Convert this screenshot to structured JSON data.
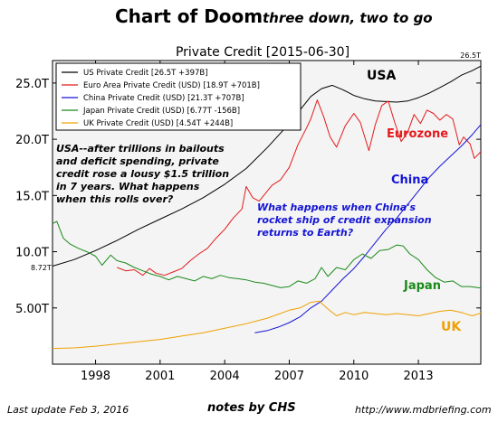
{
  "header": {
    "title": "Chart of Doom",
    "subtitle": "three down, two to go"
  },
  "footer": {
    "last_update": "Last update Feb  3, 2016",
    "notes": "notes by CHS",
    "url": "http://www.mdbriefing.com"
  },
  "colors": {
    "usa": "#000000",
    "euro": "#e41a1c",
    "china": "#1414d4",
    "japan": "#1a8a1a",
    "uk": "#f0a000",
    "plot_bg": "#f4f4f4"
  },
  "chart_data": {
    "type": "line",
    "title": "Private Credit  [2015-06-30]",
    "xlabel": "",
    "ylabel": "",
    "xlim": [
      1996.0,
      2015.9
    ],
    "ylim": [
      0,
      27
    ],
    "x_ticks": [
      1998,
      2001,
      2004,
      2007,
      2010,
      2013
    ],
    "x_tick_labels": [
      "1998",
      "2001",
      "2004",
      "2007",
      "2010",
      "2013"
    ],
    "y_ticks": [
      5,
      10,
      15,
      20,
      25
    ],
    "y_tick_labels": [
      "5.00T",
      "10.0T",
      "15.0T",
      "20.0T",
      "25.0T"
    ],
    "grid": false,
    "legend_position": "top-left",
    "edge_labels": {
      "right_top": "26.5T",
      "left": "8.72T"
    },
    "series": [
      {
        "name": "US Private Credit [26.5T +397B]",
        "key": "usa",
        "x": [
          1996.0,
          1997.0,
          1998.0,
          1999.0,
          2000.0,
          2001.0,
          2002.0,
          2003.0,
          2004.0,
          2005.0,
          2006.0,
          2007.0,
          2007.5,
          2008.0,
          2008.5,
          2009.0,
          2009.5,
          2010.0,
          2010.5,
          2011.0,
          2012.0,
          2012.5,
          2013.0,
          2013.5,
          2014.0,
          2014.5,
          2015.0,
          2015.5,
          2015.9
        ],
        "values": [
          8.72,
          9.3,
          10.1,
          11.0,
          12.0,
          12.9,
          13.8,
          14.8,
          16.0,
          17.4,
          19.3,
          21.4,
          22.6,
          23.8,
          24.5,
          24.8,
          24.4,
          23.9,
          23.6,
          23.4,
          23.3,
          23.4,
          23.7,
          24.1,
          24.6,
          25.1,
          25.7,
          26.1,
          26.5
        ]
      },
      {
        "name": "Euro Area Private Credit (USD) [18.9T +701B]",
        "key": "euro",
        "x": [
          1999.0,
          1999.4,
          1999.8,
          2000.2,
          2000.5,
          2000.8,
          2001.2,
          2001.6,
          2002.0,
          2002.4,
          2002.8,
          2003.2,
          2003.6,
          2004.0,
          2004.4,
          2004.8,
          2005.0,
          2005.3,
          2005.6,
          2005.9,
          2006.2,
          2006.6,
          2007.0,
          2007.4,
          2007.8,
          2008.0,
          2008.3,
          2008.6,
          2008.9,
          2009.2,
          2009.6,
          2010.0,
          2010.3,
          2010.7,
          2011.0,
          2011.3,
          2011.6,
          2011.9,
          2012.2,
          2012.5,
          2012.8,
          2013.1,
          2013.4,
          2013.7,
          2014.0,
          2014.3,
          2014.6,
          2014.9,
          2015.1,
          2015.4,
          2015.6,
          2015.9
        ],
        "values": [
          8.6,
          8.3,
          8.4,
          7.9,
          8.5,
          8.1,
          7.9,
          8.2,
          8.5,
          9.2,
          9.8,
          10.3,
          11.2,
          12.0,
          13.0,
          13.8,
          15.8,
          14.8,
          14.5,
          15.2,
          15.9,
          16.4,
          17.5,
          19.5,
          21.0,
          21.8,
          23.5,
          22.0,
          20.2,
          19.3,
          21.2,
          22.3,
          21.5,
          19.0,
          21.3,
          23.0,
          23.4,
          21.5,
          19.8,
          20.6,
          22.2,
          21.4,
          22.6,
          22.3,
          21.7,
          22.2,
          21.8,
          19.5,
          20.2,
          19.6,
          18.3,
          18.9
        ]
      },
      {
        "name": "China Private Credit (USD) [21.3T +707B]",
        "key": "china",
        "x": [
          2005.4,
          2006.0,
          2006.5,
          2007.0,
          2007.5,
          2008.0,
          2008.5,
          2009.0,
          2009.5,
          2010.0,
          2010.5,
          2011.0,
          2011.5,
          2012.0,
          2012.5,
          2013.0,
          2013.5,
          2014.0,
          2014.5,
          2015.0,
          2015.5,
          2015.9
        ],
        "values": [
          2.8,
          3.0,
          3.3,
          3.7,
          4.2,
          5.0,
          5.6,
          6.6,
          7.6,
          8.5,
          9.6,
          10.8,
          12.0,
          13.0,
          14.2,
          15.4,
          16.6,
          17.6,
          18.5,
          19.4,
          20.4,
          21.3
        ]
      },
      {
        "name": "Japan Private Credit (USD) [6.77T -156B]",
        "key": "japan",
        "x": [
          1996.0,
          1996.2,
          1996.5,
          1996.8,
          1997.2,
          1997.6,
          1998.0,
          1998.3,
          1998.7,
          1999.0,
          1999.4,
          1999.8,
          2000.2,
          2000.6,
          2001.0,
          2001.4,
          2001.8,
          2002.2,
          2002.6,
          2003.0,
          2003.4,
          2003.8,
          2004.2,
          2004.6,
          2005.0,
          2005.4,
          2005.8,
          2006.2,
          2006.6,
          2007.0,
          2007.4,
          2007.8,
          2008.2,
          2008.5,
          2008.8,
          2009.2,
          2009.6,
          2010.0,
          2010.4,
          2010.8,
          2011.2,
          2011.6,
          2012.0,
          2012.3,
          2012.6,
          2013.0,
          2013.4,
          2013.8,
          2014.2,
          2014.6,
          2015.0,
          2015.4,
          2015.9
        ],
        "values": [
          12.5,
          12.7,
          11.2,
          10.7,
          10.3,
          10.0,
          9.6,
          8.8,
          9.7,
          9.2,
          9.0,
          8.6,
          8.3,
          8.0,
          7.8,
          7.5,
          7.8,
          7.6,
          7.4,
          7.8,
          7.6,
          7.9,
          7.7,
          7.6,
          7.5,
          7.3,
          7.2,
          7.0,
          6.8,
          6.9,
          7.4,
          7.2,
          7.6,
          8.6,
          7.8,
          8.6,
          8.4,
          9.3,
          9.8,
          9.4,
          10.1,
          10.2,
          10.6,
          10.5,
          9.8,
          9.3,
          8.4,
          7.7,
          7.3,
          7.4,
          6.9,
          6.9,
          6.77
        ]
      },
      {
        "name": "UK Private Credit (USD) [4.54T +244B]",
        "key": "uk",
        "x": [
          1996.0,
          1997.0,
          1998.0,
          1999.0,
          2000.0,
          2001.0,
          2002.0,
          2003.0,
          2004.0,
          2005.0,
          2006.0,
          2007.0,
          2007.5,
          2008.0,
          2008.4,
          2008.8,
          2009.2,
          2009.6,
          2010.0,
          2010.5,
          2011.0,
          2011.5,
          2012.0,
          2012.5,
          2013.0,
          2013.5,
          2014.0,
          2014.5,
          2015.0,
          2015.5,
          2015.9
        ],
        "values": [
          1.4,
          1.45,
          1.6,
          1.8,
          2.0,
          2.2,
          2.5,
          2.8,
          3.2,
          3.6,
          4.1,
          4.8,
          5.0,
          5.5,
          5.6,
          4.9,
          4.3,
          4.6,
          4.4,
          4.6,
          4.5,
          4.4,
          4.5,
          4.4,
          4.3,
          4.5,
          4.7,
          4.8,
          4.6,
          4.3,
          4.54
        ]
      }
    ],
    "annotations": [
      {
        "text": "USA",
        "key": "usa"
      },
      {
        "text": "Eurozone",
        "key": "euro"
      },
      {
        "text": "China",
        "key": "china"
      },
      {
        "text": "Japan",
        "key": "japan"
      },
      {
        "text": "UK",
        "key": "uk"
      },
      {
        "lines": [
          "USA--after trillions in bailouts",
          "and deficit spending, private",
          "credit rose a lousy $1.5 trillion",
          "in 7 years. What happens",
          "when this rolls over?"
        ],
        "key": "usa"
      },
      {
        "lines": [
          "What happens when China's",
          "rocket ship of credit expansion",
          "returns to Earth?"
        ],
        "key": "china"
      }
    ]
  }
}
